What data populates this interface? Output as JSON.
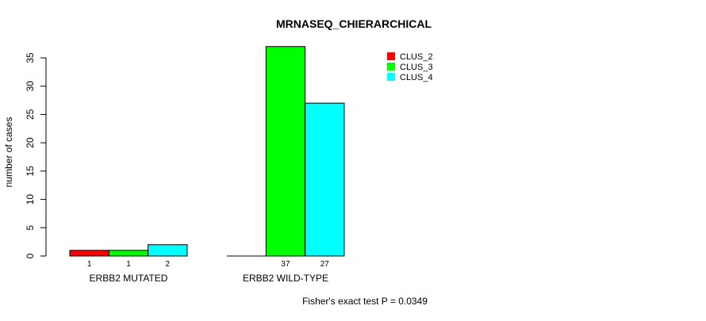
{
  "chart_data": {
    "type": "bar",
    "title": "MRNASEQ_CHIERARCHICAL",
    "xlabel": "",
    "ylabel": "number of cases",
    "ylim": [
      0,
      35
    ],
    "yticks": [
      0,
      5,
      10,
      15,
      20,
      25,
      30,
      35
    ],
    "categories": [
      "ERBB2 MUTATED",
      "ERBB2 WILD-TYPE"
    ],
    "series": [
      {
        "name": "CLUS_2",
        "color": "#ff0000",
        "values": [
          1,
          0
        ]
      },
      {
        "name": "CLUS_3",
        "color": "#00ff00",
        "values": [
          1,
          37
        ]
      },
      {
        "name": "CLUS_4",
        "color": "#00ffff",
        "values": [
          2,
          27
        ]
      }
    ],
    "data_labels": [
      [
        "1",
        "1",
        "2"
      ],
      [
        "",
        "37",
        "27"
      ]
    ],
    "legend_position": "top-right",
    "grid": false,
    "annotation": "Fisher's exact test P = 0.0349"
  }
}
